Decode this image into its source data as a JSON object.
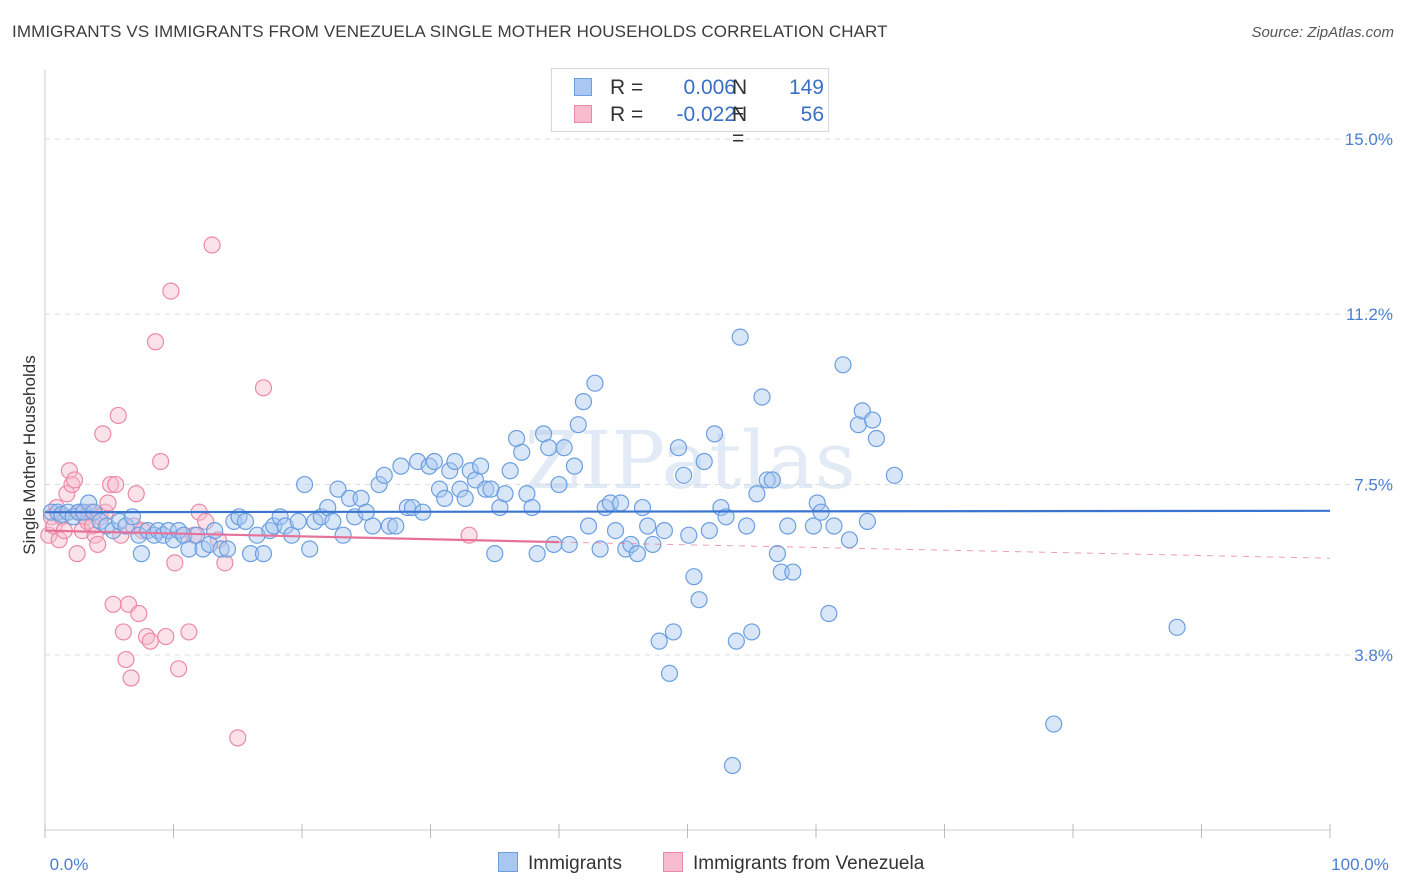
{
  "title": "IMMIGRANTS VS IMMIGRANTS FROM VENEZUELA SINGLE MOTHER HOUSEHOLDS CORRELATION CHART",
  "source": "Source: ZipAtlas.com",
  "watermark": "ZIPatlas",
  "legend": {
    "rows": [
      {
        "r_label": "R =",
        "r_value": "0.006",
        "n_label": "N =",
        "n_value": "149",
        "color": "#a9c7f0",
        "border": "#6b9fe0"
      },
      {
        "r_label": "R =",
        "r_value": "-0.022",
        "n_label": "N =",
        "n_value": "56",
        "color": "#f7bccd",
        "border": "#ea8aa8"
      }
    ]
  },
  "bottom_legend": [
    "Immigrants",
    "Immigrants from Venezuela"
  ],
  "colors": {
    "blue_fill": "#a9c7f0",
    "blue_stroke": "#6b9fe0",
    "blue_line": "#3a74d0",
    "pink_fill": "#f7bccd",
    "pink_stroke": "#ea8aa8",
    "pink_line": "#e6729a",
    "tick_text": "#4a7fd0",
    "grid": "#dddddd"
  },
  "chart_data": {
    "type": "scatter",
    "title": "IMMIGRANTS VS IMMIGRANTS FROM VENEZUELA SINGLE MOTHER HOUSEHOLDS CORRELATION CHART",
    "xlabel": "",
    "ylabel": "Single Mother Households",
    "xlim": [
      0,
      100
    ],
    "ylim": [
      0.0,
      16.5
    ],
    "y_ticks": [
      3.8,
      7.5,
      11.2,
      15.0
    ],
    "y_tick_labels": [
      "3.8%",
      "7.5%",
      "11.2%",
      "15.0%"
    ],
    "x_tick_labels": [
      "0.0%",
      "100.0%"
    ],
    "grid": "horizontal dashed",
    "legend_position": "top-center",
    "series": [
      {
        "name": "Immigrants",
        "trend": {
          "x": [
            0,
            100
          ],
          "y": [
            6.9,
            6.93
          ]
        },
        "points": [
          [
            0.5,
            6.9
          ],
          [
            1.0,
            6.9
          ],
          [
            1.3,
            6.85
          ],
          [
            1.8,
            6.9
          ],
          [
            2.2,
            6.8
          ],
          [
            2.6,
            6.9
          ],
          [
            3.0,
            6.9
          ],
          [
            3.4,
            7.1
          ],
          [
            3.8,
            6.9
          ],
          [
            4.3,
            6.7
          ],
          [
            4.8,
            6.6
          ],
          [
            5.3,
            6.5
          ],
          [
            5.8,
            6.7
          ],
          [
            6.3,
            6.6
          ],
          [
            6.8,
            6.8
          ],
          [
            7.3,
            6.4
          ],
          [
            7.5,
            6.0
          ],
          [
            8.0,
            6.5
          ],
          [
            8.5,
            6.4
          ],
          [
            8.8,
            6.5
          ],
          [
            9.2,
            6.4
          ],
          [
            9.6,
            6.5
          ],
          [
            10.0,
            6.3
          ],
          [
            10.4,
            6.5
          ],
          [
            10.8,
            6.4
          ],
          [
            11.2,
            6.1
          ],
          [
            11.8,
            6.4
          ],
          [
            12.3,
            6.1
          ],
          [
            12.8,
            6.2
          ],
          [
            13.2,
            6.5
          ],
          [
            13.7,
            6.1
          ],
          [
            14.2,
            6.1
          ],
          [
            14.7,
            6.7
          ],
          [
            15.1,
            6.8
          ],
          [
            15.6,
            6.7
          ],
          [
            16.0,
            6.0
          ],
          [
            16.5,
            6.4
          ],
          [
            17.0,
            6.0
          ],
          [
            17.5,
            6.5
          ],
          [
            17.8,
            6.6
          ],
          [
            18.3,
            6.8
          ],
          [
            18.7,
            6.6
          ],
          [
            19.2,
            6.4
          ],
          [
            19.7,
            6.7
          ],
          [
            20.2,
            7.5
          ],
          [
            20.6,
            6.1
          ],
          [
            21.0,
            6.7
          ],
          [
            21.5,
            6.8
          ],
          [
            22.0,
            7.0
          ],
          [
            22.4,
            6.7
          ],
          [
            22.8,
            7.4
          ],
          [
            23.2,
            6.4
          ],
          [
            23.7,
            7.2
          ],
          [
            24.1,
            6.8
          ],
          [
            24.6,
            7.2
          ],
          [
            25.0,
            6.9
          ],
          [
            25.5,
            6.6
          ],
          [
            26.0,
            7.5
          ],
          [
            26.4,
            7.7
          ],
          [
            26.8,
            6.6
          ],
          [
            27.3,
            6.6
          ],
          [
            27.7,
            7.9
          ],
          [
            28.2,
            7.0
          ],
          [
            28.6,
            7.0
          ],
          [
            29.0,
            8.0
          ],
          [
            29.4,
            6.9
          ],
          [
            29.9,
            7.9
          ],
          [
            30.3,
            8.0
          ],
          [
            30.7,
            7.4
          ],
          [
            31.1,
            7.2
          ],
          [
            31.5,
            7.8
          ],
          [
            31.9,
            8.0
          ],
          [
            32.3,
            7.4
          ],
          [
            32.7,
            7.2
          ],
          [
            33.1,
            7.8
          ],
          [
            33.5,
            7.6
          ],
          [
            33.9,
            7.9
          ],
          [
            34.3,
            7.4
          ],
          [
            34.7,
            7.4
          ],
          [
            35.0,
            6.0
          ],
          [
            35.4,
            7.0
          ],
          [
            35.8,
            7.3
          ],
          [
            36.2,
            7.8
          ],
          [
            36.7,
            8.5
          ],
          [
            37.1,
            8.2
          ],
          [
            37.5,
            7.3
          ],
          [
            37.9,
            7.0
          ],
          [
            38.3,
            6.0
          ],
          [
            38.8,
            8.6
          ],
          [
            39.2,
            8.3
          ],
          [
            39.6,
            6.2
          ],
          [
            40.0,
            7.5
          ],
          [
            40.4,
            8.3
          ],
          [
            40.8,
            6.2
          ],
          [
            41.2,
            7.9
          ],
          [
            41.5,
            8.8
          ],
          [
            41.9,
            9.3
          ],
          [
            42.3,
            6.6
          ],
          [
            42.8,
            9.7
          ],
          [
            43.2,
            6.1
          ],
          [
            43.6,
            7.0
          ],
          [
            44.0,
            7.1
          ],
          [
            44.4,
            6.5
          ],
          [
            44.8,
            7.1
          ],
          [
            45.2,
            6.1
          ],
          [
            45.6,
            6.2
          ],
          [
            46.1,
            6.0
          ],
          [
            46.5,
            7.0
          ],
          [
            46.9,
            6.6
          ],
          [
            47.3,
            6.2
          ],
          [
            47.8,
            4.1
          ],
          [
            48.2,
            6.5
          ],
          [
            48.6,
            3.4
          ],
          [
            48.9,
            4.3
          ],
          [
            49.3,
            8.3
          ],
          [
            49.7,
            7.7
          ],
          [
            50.1,
            6.4
          ],
          [
            50.5,
            5.5
          ],
          [
            50.9,
            5.0
          ],
          [
            51.3,
            8.0
          ],
          [
            51.7,
            6.5
          ],
          [
            52.1,
            8.6
          ],
          [
            52.6,
            7.0
          ],
          [
            53.0,
            6.8
          ],
          [
            53.5,
            1.4
          ],
          [
            53.8,
            4.1
          ],
          [
            54.1,
            10.7
          ],
          [
            54.6,
            6.6
          ],
          [
            55.0,
            4.3
          ],
          [
            55.4,
            7.3
          ],
          [
            55.8,
            9.4
          ],
          [
            56.2,
            7.6
          ],
          [
            56.6,
            7.6
          ],
          [
            57.0,
            6.0
          ],
          [
            57.3,
            5.6
          ],
          [
            57.8,
            6.6
          ],
          [
            58.2,
            5.6
          ],
          [
            59.8,
            6.6
          ],
          [
            60.1,
            7.1
          ],
          [
            60.4,
            6.9
          ],
          [
            61.0,
            4.7
          ],
          [
            61.4,
            6.6
          ],
          [
            62.1,
            10.1
          ],
          [
            62.6,
            6.3
          ],
          [
            63.3,
            8.8
          ],
          [
            63.6,
            9.1
          ],
          [
            64.0,
            6.7
          ],
          [
            64.4,
            8.9
          ],
          [
            64.7,
            8.5
          ],
          [
            66.1,
            7.7
          ],
          [
            88.1,
            4.4
          ],
          [
            78.5,
            2.3
          ]
        ]
      },
      {
        "name": "Immigrants from Venezuela",
        "trend": {
          "x": [
            0,
            40
          ],
          "y": [
            6.5,
            6.25
          ]
        },
        "trend_dashed": {
          "x": [
            40,
            100
          ],
          "y": [
            6.25,
            5.9
          ]
        },
        "points": [
          [
            0.3,
            6.4
          ],
          [
            0.5,
            6.8
          ],
          [
            0.7,
            6.6
          ],
          [
            0.9,
            7.0
          ],
          [
            1.1,
            6.3
          ],
          [
            1.3,
            6.8
          ],
          [
            1.5,
            6.5
          ],
          [
            1.7,
            7.3
          ],
          [
            1.9,
            7.8
          ],
          [
            2.1,
            7.5
          ],
          [
            2.3,
            7.6
          ],
          [
            2.5,
            6.0
          ],
          [
            2.7,
            6.9
          ],
          [
            2.9,
            6.5
          ],
          [
            3.1,
            6.8
          ],
          [
            3.3,
            6.7
          ],
          [
            3.5,
            6.9
          ],
          [
            3.7,
            6.6
          ],
          [
            3.9,
            6.4
          ],
          [
            4.1,
            6.2
          ],
          [
            4.3,
            6.8
          ],
          [
            4.5,
            8.6
          ],
          [
            4.7,
            6.9
          ],
          [
            4.9,
            7.1
          ],
          [
            5.1,
            7.5
          ],
          [
            5.3,
            4.9
          ],
          [
            5.5,
            7.5
          ],
          [
            5.7,
            9.0
          ],
          [
            5.9,
            6.4
          ],
          [
            6.1,
            4.3
          ],
          [
            6.3,
            3.7
          ],
          [
            6.5,
            4.9
          ],
          [
            6.7,
            3.3
          ],
          [
            6.9,
            6.6
          ],
          [
            7.1,
            7.3
          ],
          [
            7.3,
            4.7
          ],
          [
            7.6,
            6.5
          ],
          [
            7.9,
            4.2
          ],
          [
            8.2,
            4.1
          ],
          [
            8.6,
            10.6
          ],
          [
            9.0,
            8.0
          ],
          [
            9.4,
            4.2
          ],
          [
            9.8,
            11.7
          ],
          [
            10.1,
            5.8
          ],
          [
            10.4,
            3.5
          ],
          [
            10.8,
            6.4
          ],
          [
            11.2,
            4.3
          ],
          [
            11.6,
            6.4
          ],
          [
            12.0,
            6.9
          ],
          [
            12.5,
            6.7
          ],
          [
            13.0,
            12.7
          ],
          [
            13.5,
            6.3
          ],
          [
            14.0,
            5.8
          ],
          [
            15.0,
            2.0
          ],
          [
            17.0,
            9.6
          ],
          [
            33.0,
            6.4
          ]
        ]
      }
    ]
  }
}
